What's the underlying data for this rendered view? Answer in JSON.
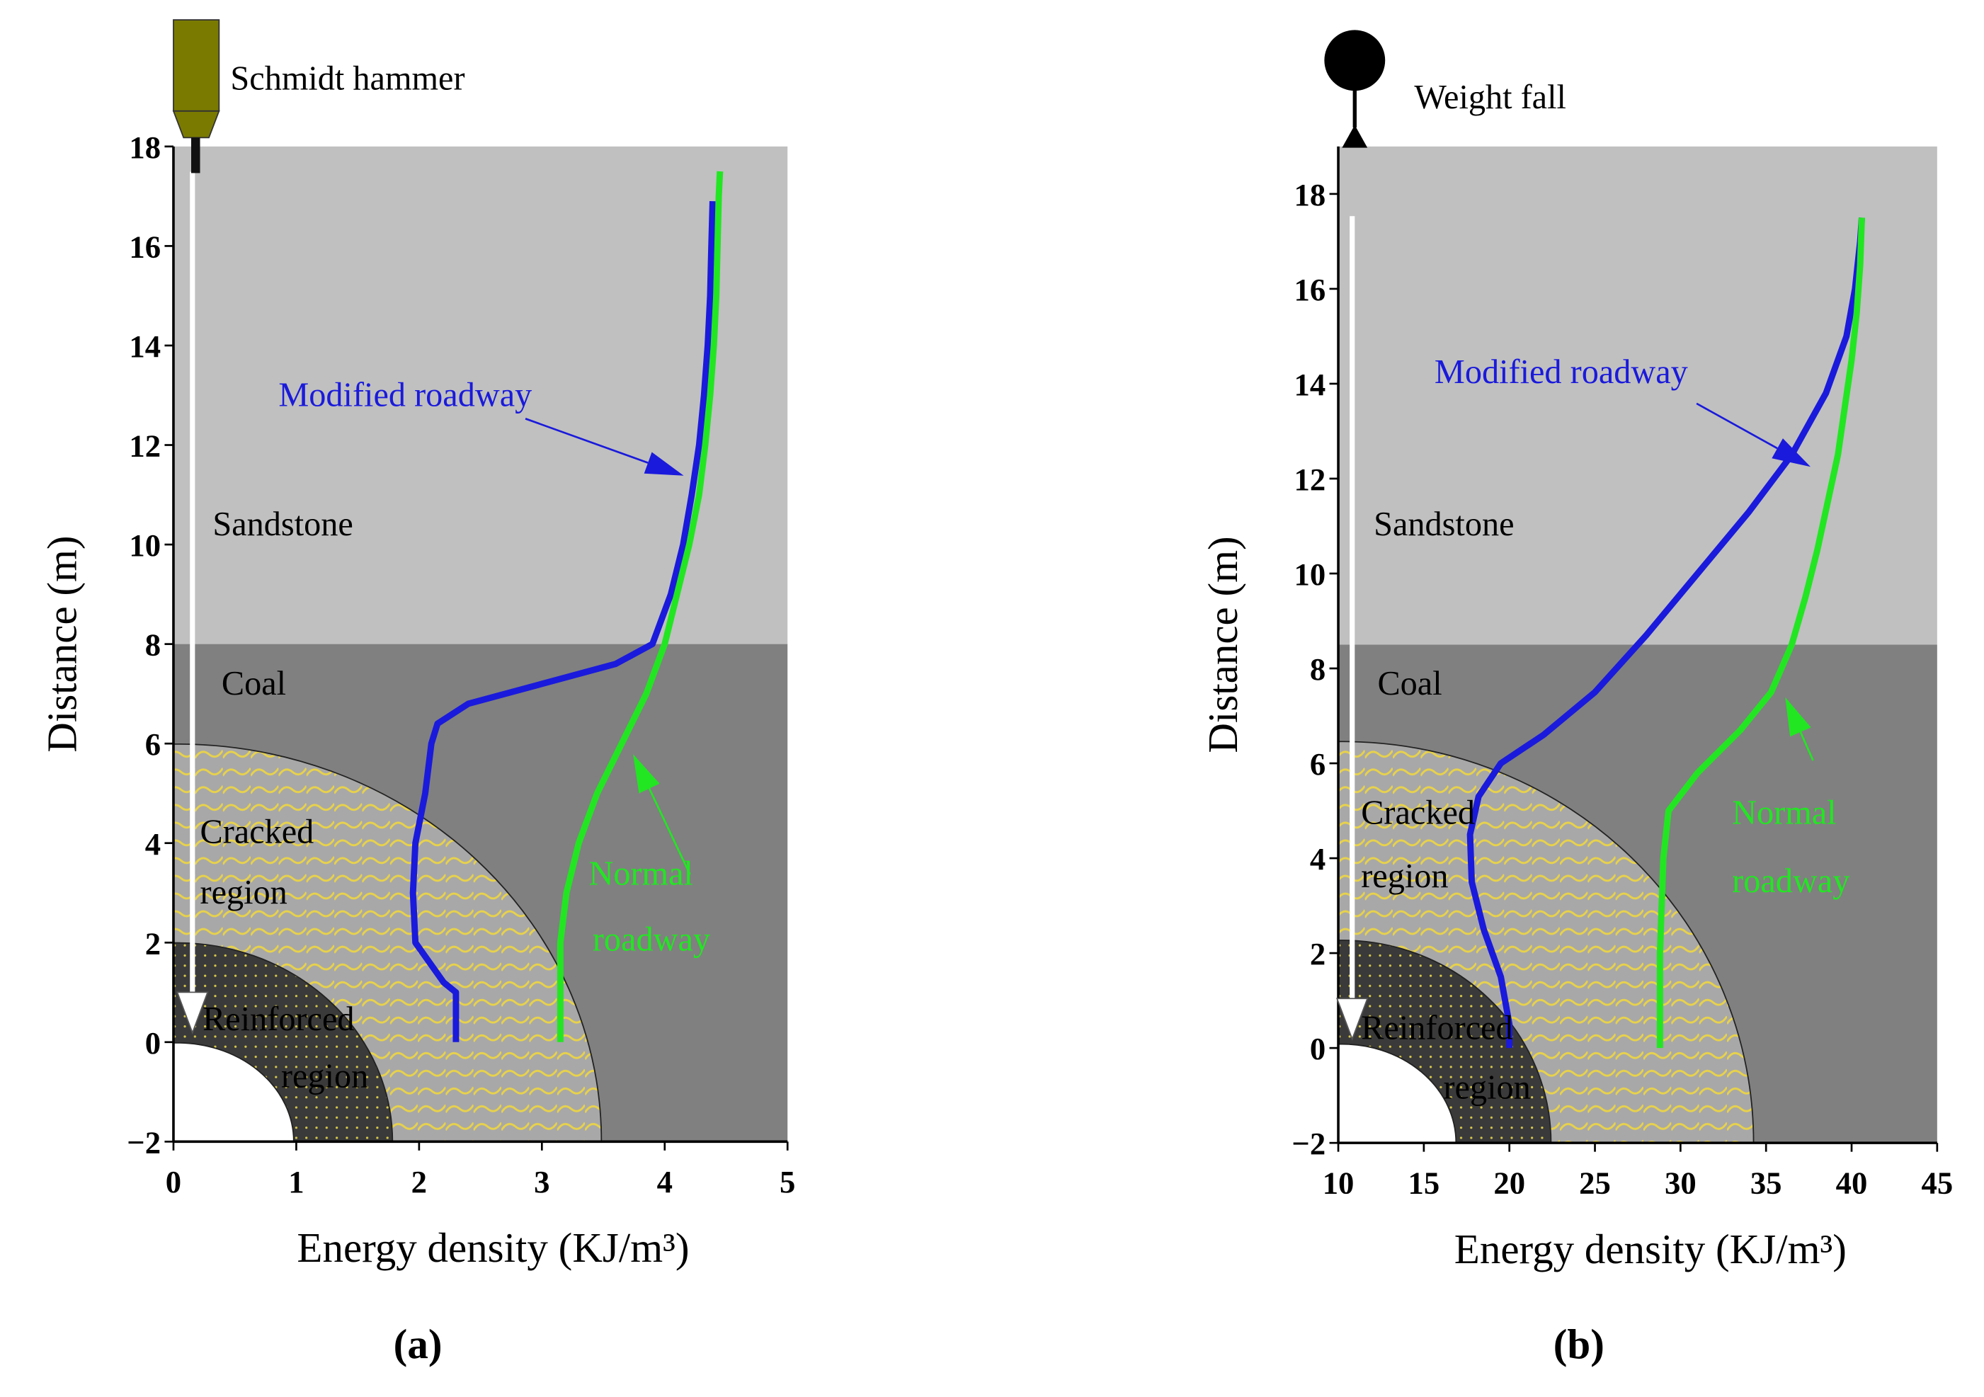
{
  "chart_data": [
    {
      "type": "line",
      "caption": "(a)",
      "x_label": "Energy density (KJ/m³)",
      "y_label": "Distance (m)",
      "xlim": [
        0,
        5
      ],
      "ylim": [
        -2,
        18
      ],
      "xticks": [
        0,
        1,
        2,
        3,
        4,
        5
      ],
      "yticks": [
        {
          "value": -2,
          "label": "−2"
        },
        0,
        2,
        4,
        6,
        8,
        10,
        12,
        14,
        16,
        18
      ],
      "coal_top": 8,
      "annotations": [
        {
          "lines": [
            "Schmidt hammer"
          ],
          "color": "#000000"
        },
        {
          "lines": [
            "Sandstone"
          ],
          "color": "#000000"
        },
        {
          "lines": [
            "Coal"
          ],
          "color": "#000000"
        },
        {
          "lines": [
            "Cracked",
            "region"
          ],
          "color": "#000000"
        },
        {
          "lines": [
            "Reinforced",
            "region"
          ],
          "color": "#000000"
        },
        {
          "lines": [
            "Modified roadway"
          ],
          "color": "#1a1adc"
        },
        {
          "lines": [
            "Normal",
            "roadway"
          ],
          "color": "#22e622"
        }
      ],
      "series": [
        {
          "name": "Modified roadway",
          "color": "#1a1adc",
          "x": [
            2.3,
            2.3,
            2.2,
            1.97,
            1.95,
            1.97,
            2.05,
            2.1,
            2.15,
            2.4,
            3.0,
            3.6,
            3.9,
            4.05,
            4.15,
            4.22,
            4.28,
            4.32,
            4.35,
            4.37,
            4.38,
            4.39
          ],
          "values": [
            0,
            1,
            1.2,
            2,
            3,
            4,
            5,
            6,
            6.4,
            6.8,
            7.2,
            7.6,
            8,
            9,
            10,
            11,
            12,
            13,
            14,
            15,
            16,
            16.9
          ]
        },
        {
          "name": "Normal roadway",
          "color": "#22e622",
          "x": [
            3.15,
            3.15,
            3.15,
            3.2,
            3.3,
            3.45,
            3.65,
            3.85,
            4.0,
            4.1,
            4.2,
            4.28,
            4.33,
            4.37,
            4.4,
            4.42,
            4.43,
            4.44,
            4.45
          ],
          "values": [
            0,
            1,
            2,
            3,
            4,
            5,
            6,
            7,
            8,
            9,
            10,
            11,
            12,
            13,
            14,
            15,
            16,
            17,
            17.5
          ]
        }
      ]
    },
    {
      "type": "line",
      "caption": "(b)",
      "x_label": "Energy density (KJ/m³)",
      "y_label": "Distance (m)",
      "xlim": [
        10,
        45
      ],
      "ylim": [
        -2,
        19
      ],
      "xticks": [
        10,
        15,
        20,
        25,
        30,
        35,
        40,
        45
      ],
      "yticks": [
        {
          "value": -2,
          "label": "−2"
        },
        0,
        2,
        4,
        6,
        8,
        10,
        12,
        14,
        16,
        18
      ],
      "coal_top": 8.5,
      "annotations": [
        {
          "lines": [
            "Weight fall"
          ],
          "color": "#000000"
        },
        {
          "lines": [
            "Sandstone"
          ],
          "color": "#000000"
        },
        {
          "lines": [
            "Coal"
          ],
          "color": "#000000"
        },
        {
          "lines": [
            "Cracked",
            "region"
          ],
          "color": "#000000"
        },
        {
          "lines": [
            "Reinforced",
            "region"
          ],
          "color": "#000000"
        },
        {
          "lines": [
            "Modified roadway"
          ],
          "color": "#1a1adc"
        },
        {
          "lines": [
            "Normal",
            "roadway"
          ],
          "color": "#22e622"
        }
      ],
      "series": [
        {
          "name": "Modified roadway",
          "color": "#1a1adc",
          "x": [
            20,
            20,
            19.5,
            18.5,
            17.8,
            17.7,
            18.2,
            19.5,
            22,
            25,
            28,
            31,
            34,
            36.5,
            38.5,
            39.7,
            40.2,
            40.5,
            40.6
          ],
          "values": [
            0,
            0.5,
            1.5,
            2.5,
            3.5,
            4.5,
            5.3,
            6,
            6.6,
            7.5,
            8.7,
            10,
            11.3,
            12.5,
            13.8,
            15,
            16,
            17,
            17.5
          ]
        },
        {
          "name": "Normal roadway",
          "color": "#22e622",
          "x": [
            28.8,
            28.8,
            28.8,
            28.9,
            29,
            29.3,
            31,
            33.5,
            35.3,
            36.5,
            37.3,
            38,
            38.6,
            39.2,
            39.6,
            40,
            40.3,
            40.5,
            40.6
          ],
          "values": [
            0,
            1,
            2,
            3,
            4,
            5,
            5.8,
            6.7,
            7.5,
            8.5,
            9.5,
            10.5,
            11.5,
            12.5,
            13.5,
            14.5,
            15.5,
            16.5,
            17.5
          ]
        }
      ]
    }
  ]
}
